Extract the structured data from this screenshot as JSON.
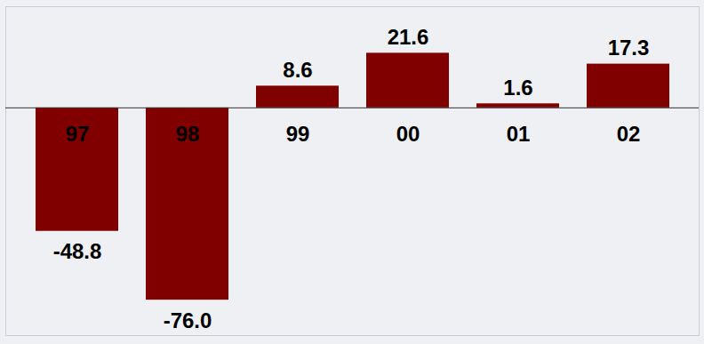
{
  "chart_data": {
    "type": "bar",
    "categories": [
      "97",
      "98",
      "99",
      "00",
      "01",
      "02"
    ],
    "values": [
      -48.8,
      -76.0,
      8.6,
      21.6,
      1.6,
      17.3
    ],
    "value_labels": [
      "-48.8",
      "-76.0",
      "8.6",
      "21.6",
      "1.6",
      "17.3"
    ],
    "color": "#800000",
    "ylim": [
      -90,
      40
    ],
    "yticks": [],
    "grid": false,
    "data_labels": true,
    "tick_labels": "x"
  }
}
